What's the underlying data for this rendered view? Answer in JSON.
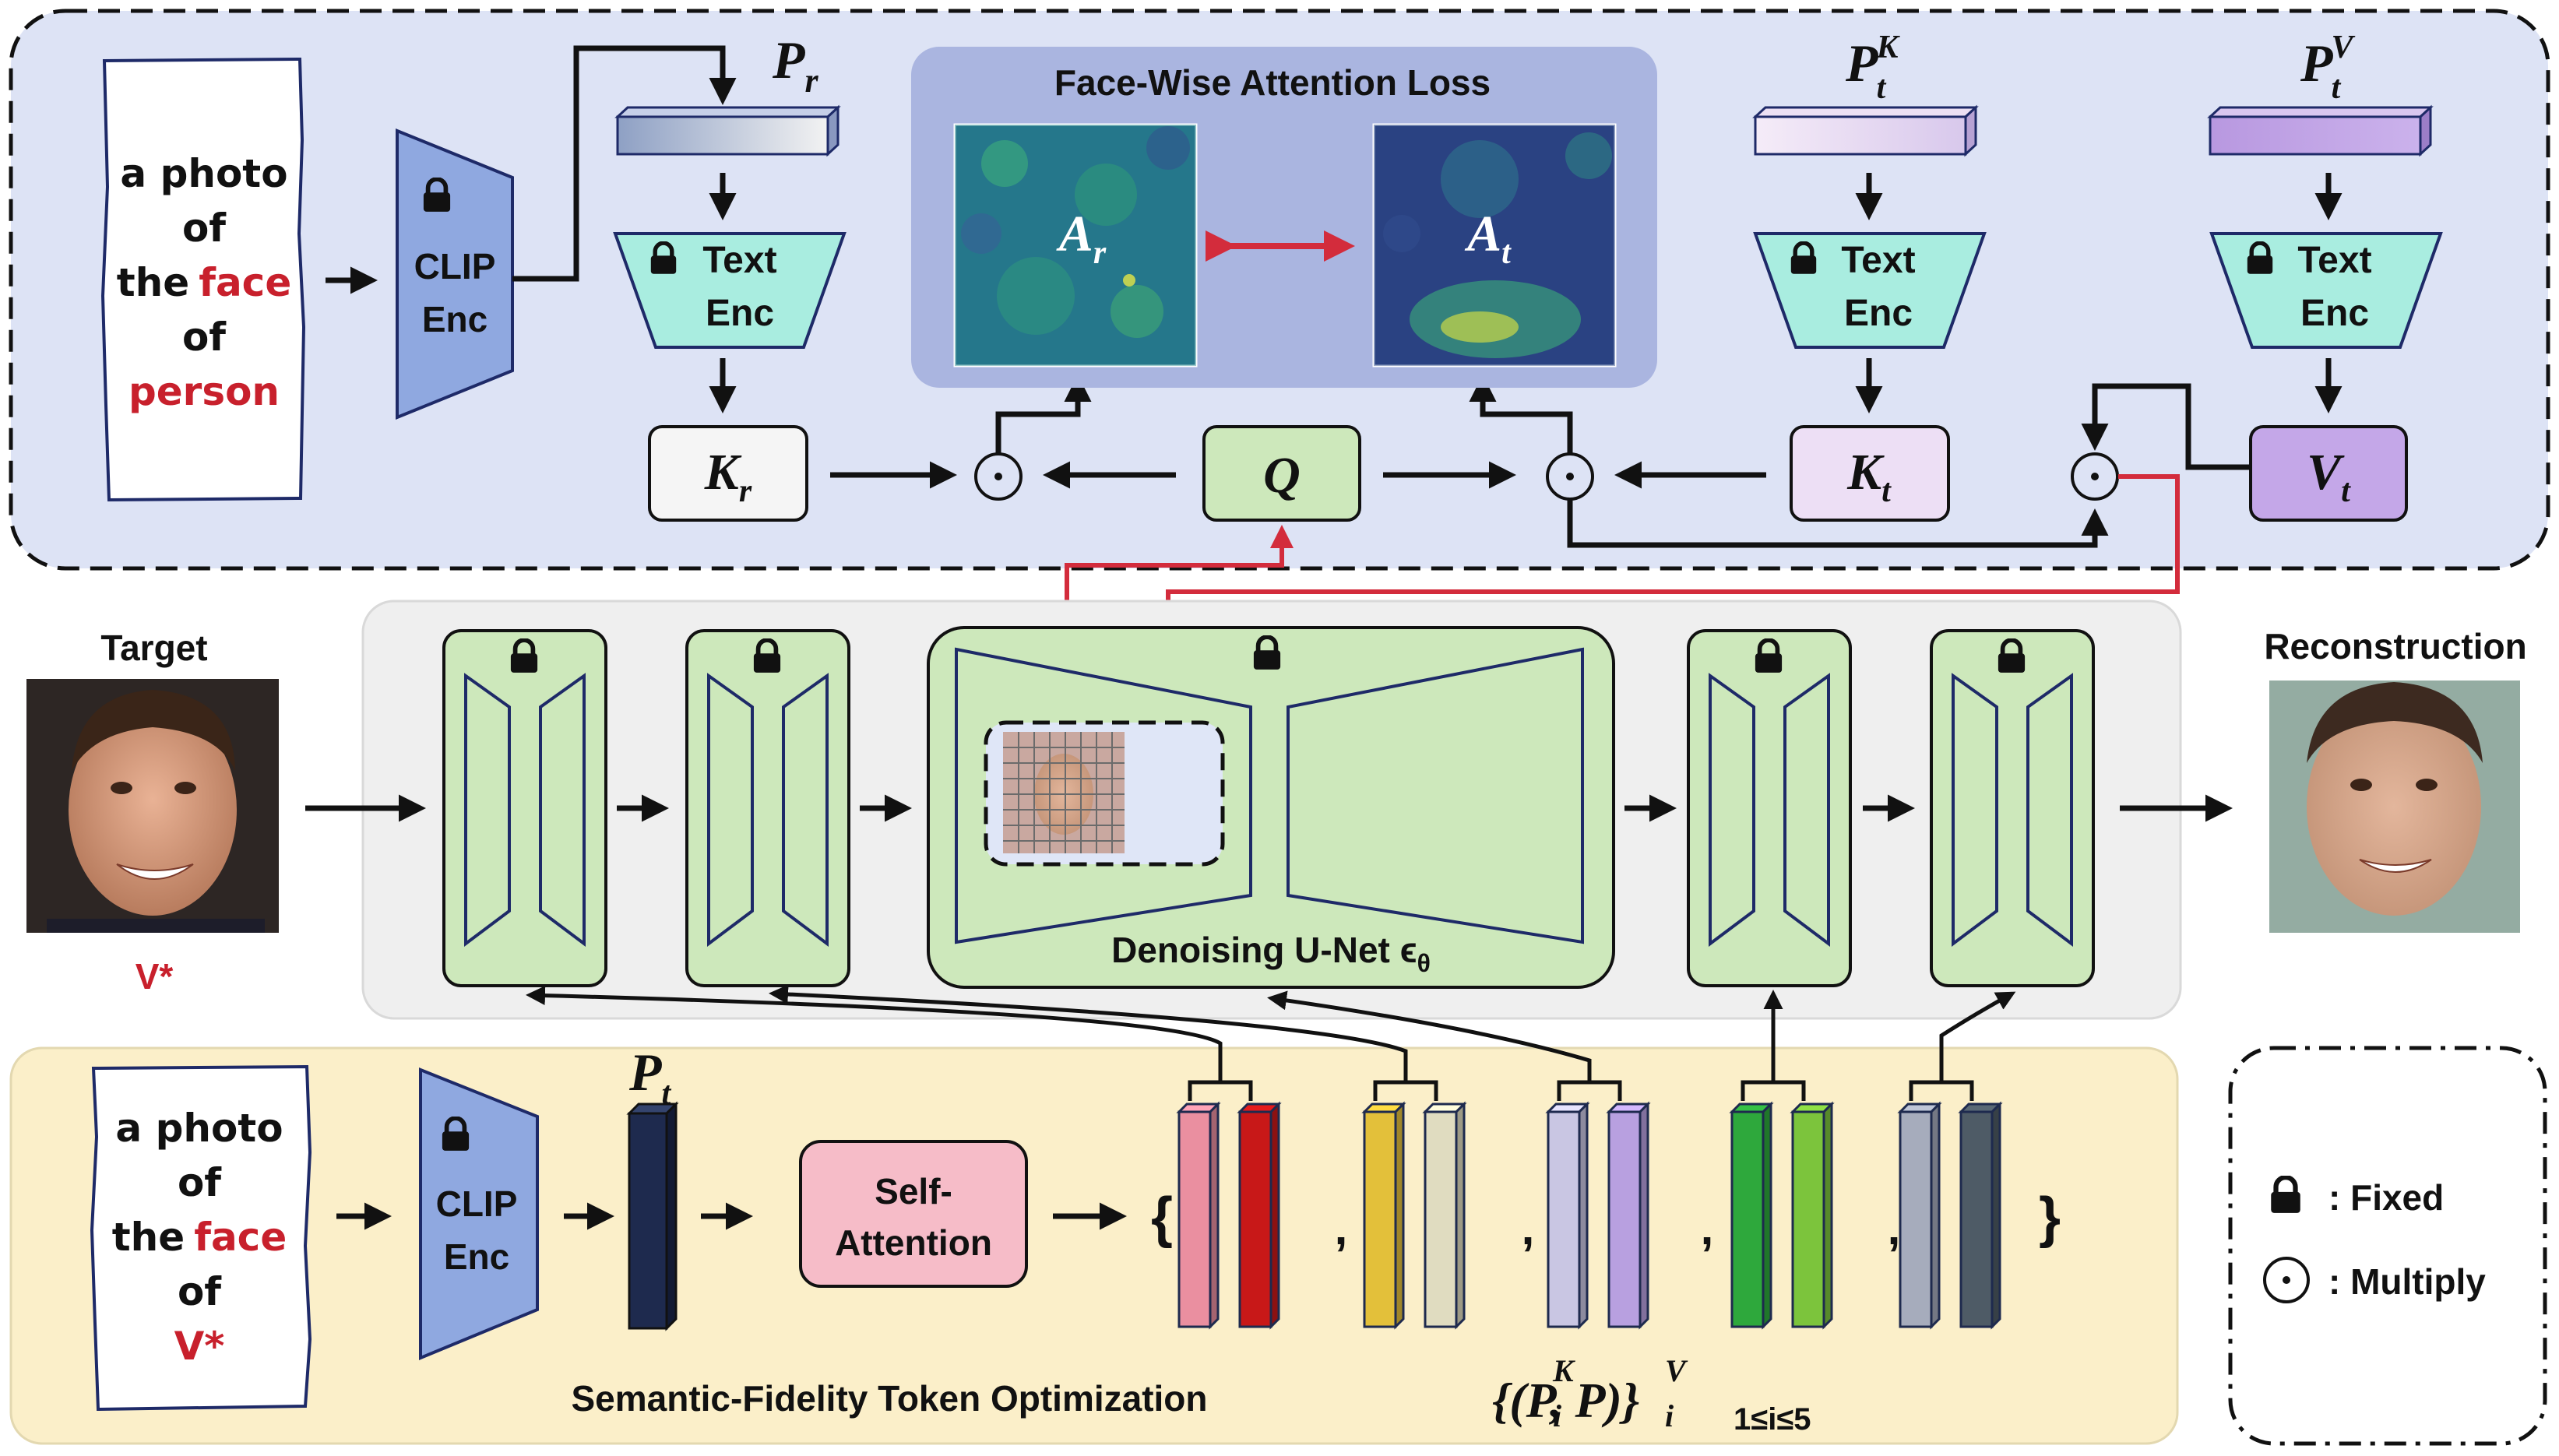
{
  "top_panel": {
    "prompt_lines": [
      "a photo",
      "of",
      "the",
      "face",
      "of",
      "person"
    ],
    "clip_encoder": [
      "CLIP",
      "Enc"
    ],
    "pr_label": "P",
    "pr_sub": "r",
    "text_encoder": [
      "Text",
      "Enc"
    ],
    "kr_label": "K",
    "kr_sub": "r",
    "q_label": "Q",
    "attention_loss_title": "Face-Wise Attention Loss",
    "ar_label": "A",
    "ar_sub": "r",
    "at_label": "A",
    "at_sub": "t",
    "ptk_label": "P",
    "ptk_sub": "t",
    "ptk_sup": "K",
    "ptv_label": "P",
    "ptv_sub": "t",
    "ptv_sup": "V",
    "kt_label": "K",
    "kt_sub": "t",
    "vt_label": "V",
    "vt_sub": "t",
    "multiply_symbol": "⊙"
  },
  "middle_panel": {
    "target_label": "Target",
    "target_token": "V*",
    "reconstruction_label": "Reconstruction",
    "unet_label": "Denoising U-Net ϵ",
    "unet_sub": "θ"
  },
  "bottom_panel": {
    "prompt_lines": [
      "a photo",
      "of",
      "the",
      "face",
      "of",
      "V*"
    ],
    "clip_encoder": [
      "CLIP",
      "Enc"
    ],
    "pt_label": "P",
    "pt_sub": "t",
    "self_attention": [
      "Self-",
      "Attention"
    ],
    "title": "Semantic-Fidelity Token Optimization",
    "set_open": "{",
    "set_close": "}",
    "comma": ",",
    "token_set_formula": "{(P, P)}",
    "token_set_sup_k": "K",
    "token_set_sup_v": "V",
    "token_set_sub_i": "i",
    "token_set_range": "1≤i≤5"
  },
  "legend": {
    "fixed_label": ": Fixed",
    "multiply_label": ": Multiply",
    "multiply_symbol": "⊙"
  },
  "colors": {
    "top_panel_bg": "#dde3f5",
    "attention_panel_bg": "#aab5e0",
    "unet_panel_bg": "#efefef",
    "bottom_panel_bg": "#fbefc9",
    "block_green": "#cde8bb",
    "clip_blue": "#8fa8e0",
    "text_enc_teal": "#a9ede0",
    "kt_lavender": "#eddff5",
    "vt_purple": "#c4a7e8",
    "self_attention_pink": "#f6bcc8",
    "red_arrow": "#d32c3c",
    "red_text": "#c8202c"
  },
  "token_pairs": [
    {
      "k_color": "#ea8fa0",
      "v_color": "#c81818"
    },
    {
      "k_color": "#e3c03a",
      "v_color": "#e0dcc0"
    },
    {
      "k_color": "#c9c6e3",
      "v_color": "#b8a0e0"
    },
    {
      "k_color": "#2ea83c",
      "v_color": "#7cc43c"
    },
    {
      "k_color": "#a6acbc",
      "v_color": "#4e5b66"
    }
  ]
}
